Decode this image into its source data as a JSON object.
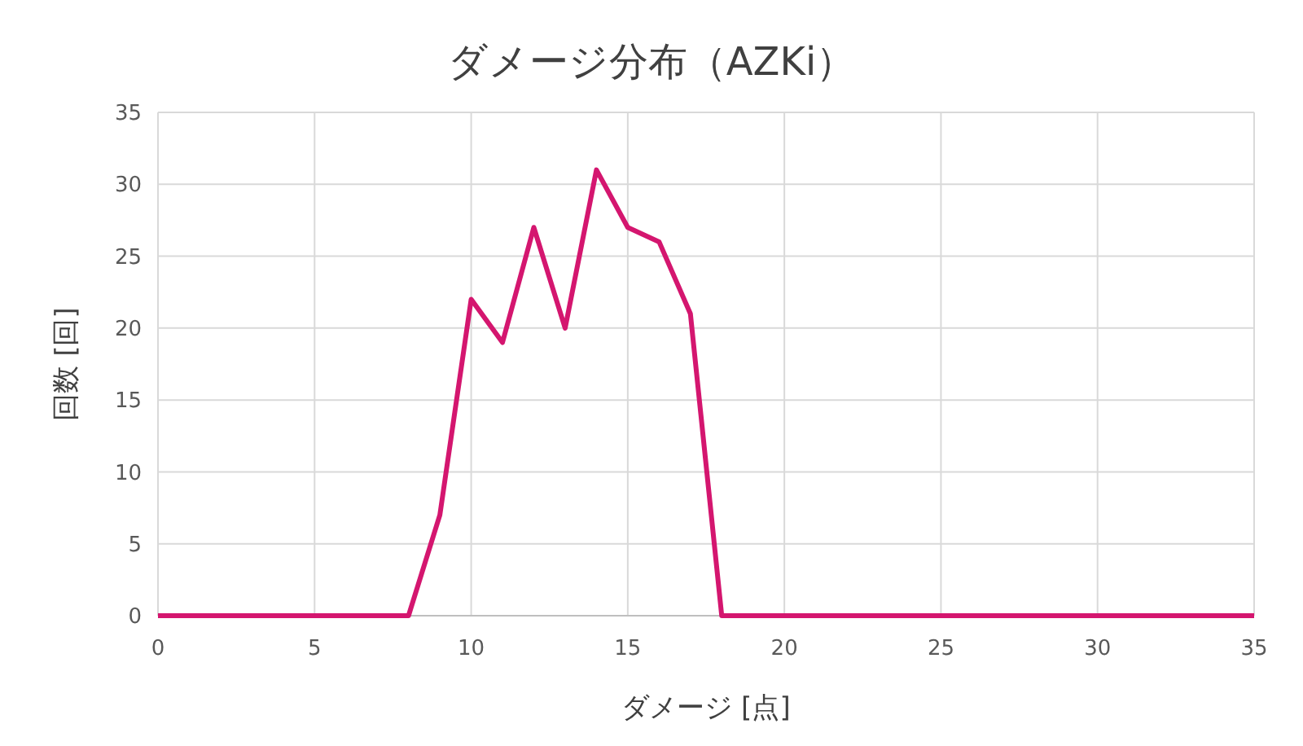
{
  "chart_data": {
    "type": "line",
    "title": "ダメージ分布（AZKi）",
    "xlabel": "ダメージ [点]",
    "ylabel": "回数 [回]",
    "x": [
      0,
      1,
      2,
      3,
      4,
      5,
      6,
      7,
      8,
      9,
      10,
      11,
      12,
      13,
      14,
      15,
      16,
      17,
      18,
      19,
      20,
      21,
      22,
      23,
      24,
      25,
      26,
      27,
      28,
      29,
      30,
      31,
      32,
      33,
      34,
      35
    ],
    "series": [
      {
        "color": "#d4166f",
        "values": [
          0,
          0,
          0,
          0,
          0,
          0,
          0,
          0,
          0,
          7,
          22,
          19,
          27,
          20,
          31,
          27,
          26,
          21,
          0,
          0,
          0,
          0,
          0,
          0,
          0,
          0,
          0,
          0,
          0,
          0,
          0,
          0,
          0,
          0,
          0,
          0
        ]
      }
    ],
    "xlim": [
      0,
      35
    ],
    "xticks": [
      0,
      5,
      10,
      15,
      20,
      25,
      30,
      35
    ],
    "ylim": [
      0,
      35
    ],
    "yticks": [
      0,
      5,
      10,
      15,
      20,
      25,
      30,
      35
    ],
    "grid": true,
    "marker": "none",
    "line_style": "solid"
  }
}
